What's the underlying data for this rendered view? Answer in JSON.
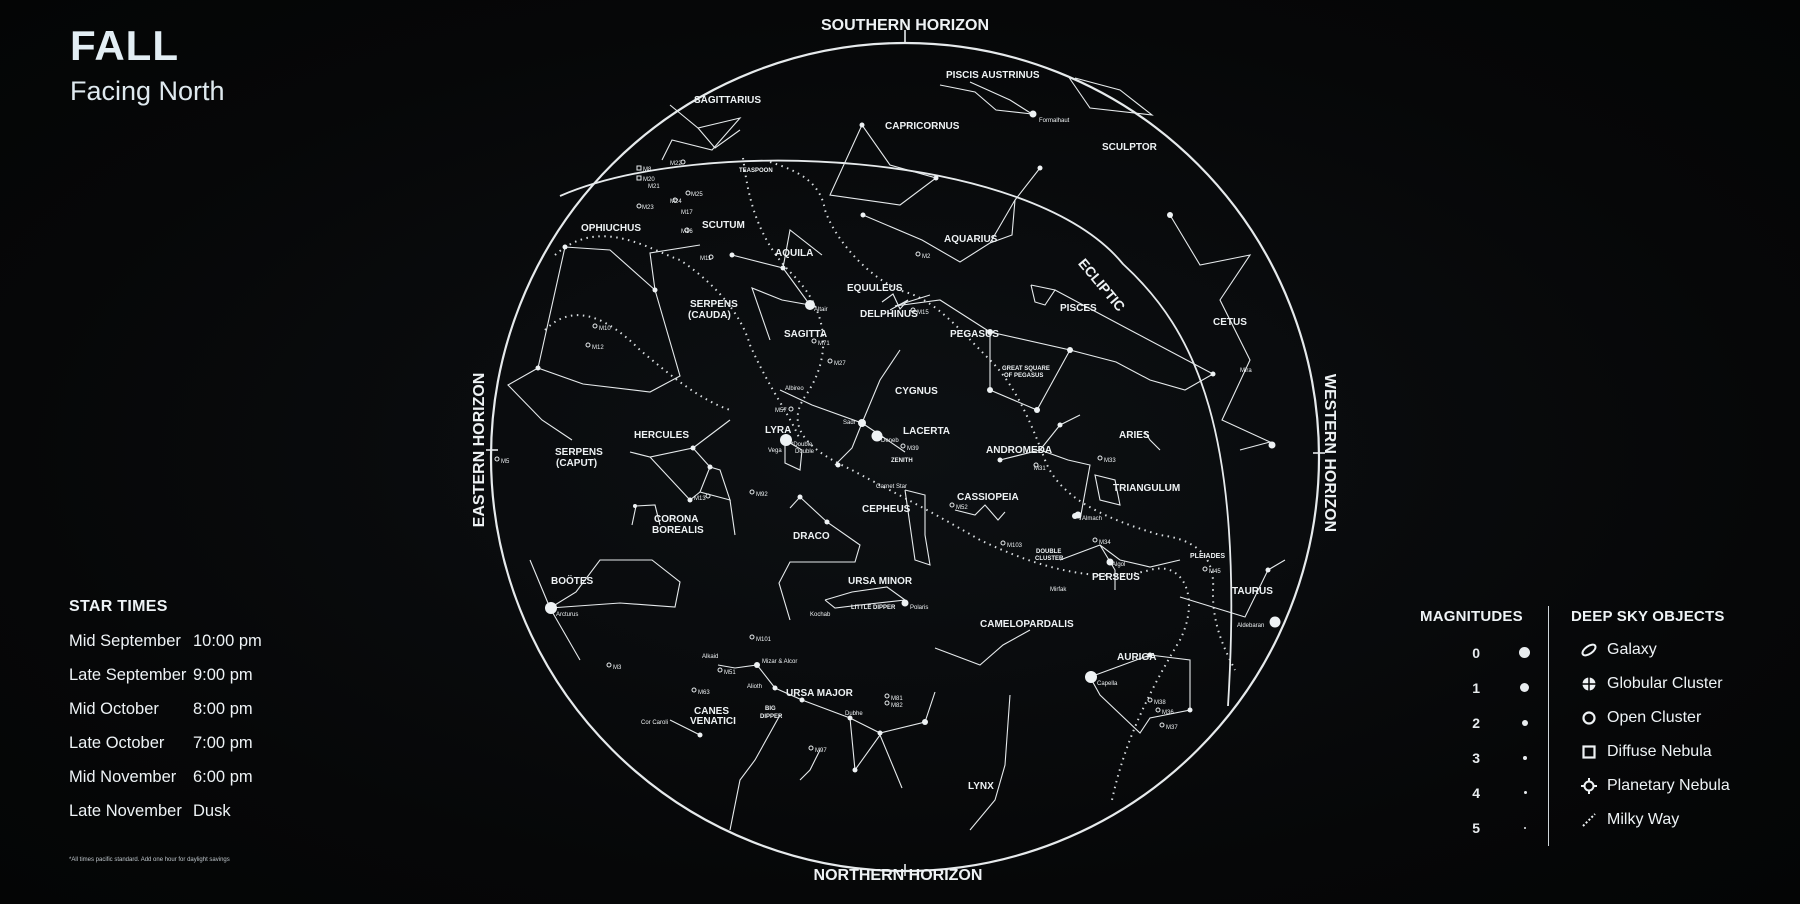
{
  "header": {
    "title": "FALL",
    "subtitle": "Facing North"
  },
  "star_times": {
    "heading": "STAR TIMES",
    "rows": [
      {
        "period": "Mid September",
        "time": "10:00 pm"
      },
      {
        "period": "Late September",
        "time": "9:00 pm"
      },
      {
        "period": "Mid October",
        "time": "8:00 pm"
      },
      {
        "period": "Late October",
        "time": "7:00 pm"
      },
      {
        "period": "Mid November",
        "time": "6:00 pm"
      },
      {
        "period": "Late November",
        "time": "Dusk"
      }
    ],
    "footnote": "*All times pacific standard. Add one hour for daylight savings"
  },
  "horizons": {
    "south": "SOUTHERN HORIZON",
    "north": "NORTHERN HORIZON",
    "east": "EASTERN HORIZON",
    "west": "WESTERN HORIZON",
    "ecliptic": "ECLIPTIC"
  },
  "constellations": {
    "piscis_austrinus": "PISCIS AUSTRINUS",
    "sagittarius": "SAGITTARIUS",
    "capricornus": "CAPRICORNUS",
    "sculptor": "SCULPTOR",
    "teaspoon": "TEASPOON",
    "scutum": "SCUTUM",
    "ophiuchus": "OPHIUCHUS",
    "aquila": "AQUILA",
    "aquarius": "AQUARIUS",
    "equuleus": "EQUULEUS",
    "delphinus": "DELPHINUS",
    "pisces": "PISCES",
    "cetus": "CETUS",
    "serpens_cauda_1": "SERPENS",
    "serpens_cauda_2": "(CAUDA)",
    "sagitta": "SAGITTA",
    "pegasus": "PEGASUS",
    "great_square_1": "GREAT SQUARE",
    "great_square_2": "OF PEGASUS",
    "cygnus": "CYGNUS",
    "lyra": "LYRA",
    "lacerta": "LACERTA",
    "zenith": "ZENITH",
    "andromeda": "ANDROMEDA",
    "aries": "ARIES",
    "hercules": "HERCULES",
    "serpens_caput_1": "SERPENS",
    "serpens_caput_2": "(CAPUT)",
    "triangulum": "TRIANGULUM",
    "cepheus": "CEPHEUS",
    "cassiopeia": "CASSIOPEIA",
    "corona_1": "CORONA",
    "corona_2": "BOREALIS",
    "draco": "DRACO",
    "double_cluster_1": "DOUBLE",
    "double_cluster_2": "CLUSTER",
    "pleiades": "PLEIADES",
    "perseus": "PERSEUS",
    "bootes": "BOÖTES",
    "ursa_minor": "URSA MINOR",
    "little_dipper": "LITTLE DIPPER",
    "taurus": "TAURUS",
    "camelopardalis": "CAMELOPARDALIS",
    "auriga": "AURIGA",
    "ursa_major": "URSA MAJOR",
    "canes_1": "CANES",
    "canes_2": "VENATICI",
    "big_dipper_1": "BIG",
    "big_dipper_2": "DIPPER",
    "lynx": "LYNX"
  },
  "stars": {
    "fomalhaut": "Formalhaut",
    "altair": "Altair",
    "albireo": "Albireo",
    "sadr": "Sadr",
    "deneb": "Deneb",
    "vega": "Vega",
    "double_double_1": "*Double",
    "double_double_2": "Double",
    "garnet_star": "Garnet Star",
    "almach": "Almach",
    "algol": "Algol",
    "mirfak": "Mirfak",
    "aldebaran": "Aldebaran",
    "arcturus": "Arcturus",
    "kochab": "Kochab",
    "polaris": "Polaris",
    "capella": "Capella",
    "alkaid": "Alkaid",
    "mizar_alcor": "Mizar & Alcor",
    "alioth": "Alioth",
    "dubhe": "Dubhe",
    "cor_caroli": "Cor Caroli",
    "mira": "Mira"
  },
  "messier": {
    "m8": "M8",
    "m20": "M20",
    "m21": "M21",
    "m22": "M22",
    "m23": "M23",
    "m24": "M24",
    "m25": "M25",
    "m17": "M17",
    "m16": "M16",
    "m11": "M11",
    "m2": "M2",
    "m15": "M15",
    "m10": "M10",
    "m12": "M12",
    "m71": "M71",
    "m27": "M27",
    "m57": "M57",
    "m39": "M39",
    "m5": "M5",
    "m31": "M31",
    "m33": "M33",
    "m13": "M13",
    "m92": "M92",
    "m52": "M52",
    "m103": "M103",
    "m34": "M34",
    "m45": "M45",
    "m101": "M101",
    "m3": "M3",
    "m51": "M51",
    "m63": "M63",
    "m81": "M81",
    "m82": "M82",
    "m97": "M97",
    "m38": "M38",
    "m36": "M36",
    "m37": "M37"
  },
  "magnitudes": {
    "heading": "MAGNITUDES",
    "levels": [
      "0",
      "1",
      "2",
      "3",
      "4",
      "5"
    ]
  },
  "deep_sky": {
    "heading": "DEEP SKY OBJECTS",
    "items": [
      {
        "label": "Galaxy",
        "icon": "galaxy-icon"
      },
      {
        "label": "Globular Cluster",
        "icon": "globular-cluster-icon"
      },
      {
        "label": "Open Cluster",
        "icon": "open-cluster-icon"
      },
      {
        "label": "Diffuse Nebula",
        "icon": "diffuse-nebula-icon"
      },
      {
        "label": "Planetary Nebula",
        "icon": "planetary-nebula-icon"
      },
      {
        "label": "Milky Way",
        "icon": "milky-way-icon"
      }
    ]
  },
  "colors": {
    "background": "#050607",
    "ink": "#eef2f4"
  }
}
